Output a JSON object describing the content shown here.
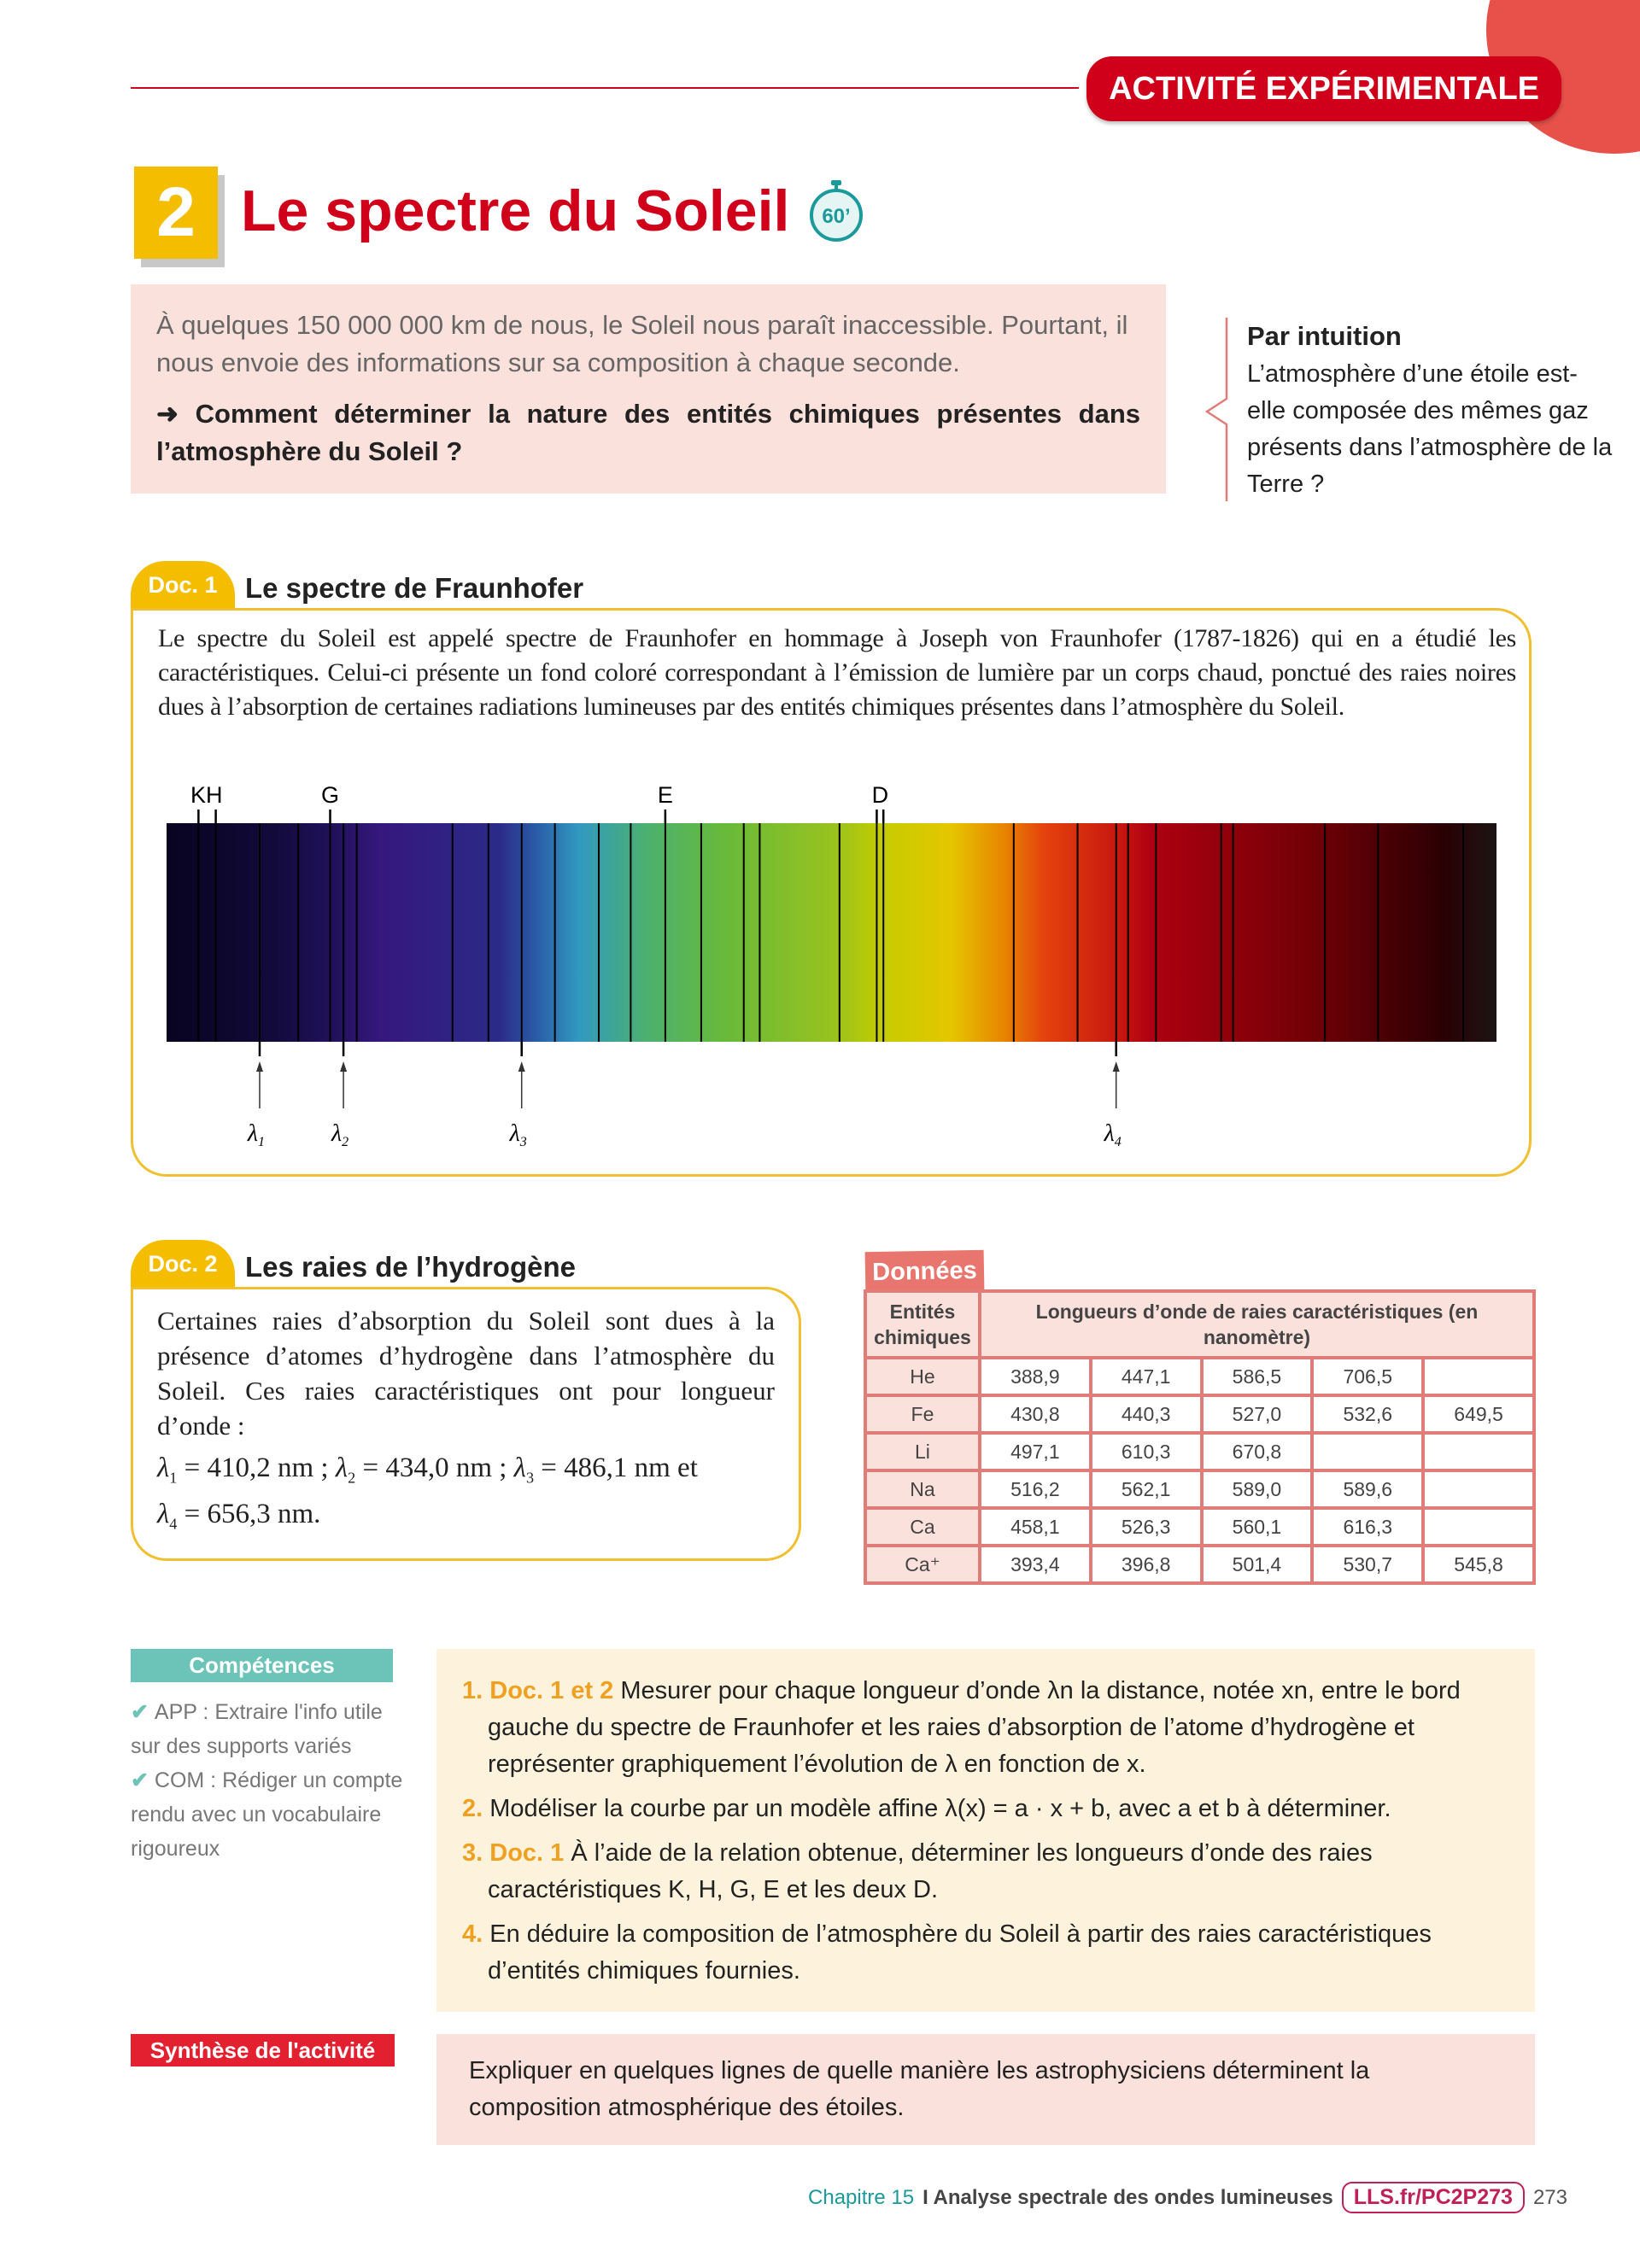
{
  "header": {
    "banner": "ACTIVITÉ EXPÉRIMENTALE",
    "number": "2",
    "title": "Le spectre du Soleil",
    "timer": "60’"
  },
  "intro": {
    "text": "À quelques 150 000 000 km de nous, le Soleil nous paraît inaccessible. Pourtant, il nous envoie des informations sur sa composition à chaque seconde.",
    "question": "➜ Comment déterminer la nature des entités chimiques présentes dans l’atmosphère du Soleil ?"
  },
  "intuition": {
    "title": "Par intuition",
    "text": "L’atmosphère d’une étoile est-elle composée des mêmes gaz présents dans l’atmosphère de la Terre ?"
  },
  "doc1": {
    "tab": "Doc. 1",
    "title": "Le spectre de Fraunhofer",
    "text": "Le spectre du Soleil est appelé spectre de Fraunhofer en hommage à Joseph von Fraunhofer (1787-1826) qui en a étudié les caractéristiques. Celui-ci présente un fond coloré correspondant à l’émission de lumière par un corps chaud, ponctué des raies noires dues à l’absorption de certaines radiations lumineuses par des entités chimiques présentes dans l’atmosphère du Soleil.",
    "top_labels": [
      "KH",
      "G",
      "E",
      "D"
    ],
    "lambda_labels": [
      "1",
      "2",
      "3",
      "4"
    ]
  },
  "doc2": {
    "tab": "Doc. 2",
    "title": "Les raies de l’hydrogène",
    "text": "Certaines raies d’absorption du Soleil sont dues à la présence d’atomes d’hydrogène dans l’atmosphère du Soleil. Ces raies caractéristiques ont pour longueur d’onde :",
    "eq": [
      {
        "sub": "1",
        "val": " = 410,2 nm ; "
      },
      {
        "sub": "2",
        "val": " = 434,0 nm ; "
      },
      {
        "sub": "3",
        "val": " = 486,1 nm et "
      },
      {
        "sub": "4",
        "val": " = 656,3 nm."
      }
    ]
  },
  "donnees": {
    "tab": "Données",
    "col1": "Entités chimiques",
    "col2": "Longueurs d’onde de raies caractéristiques (en nanomètre)",
    "rows": [
      {
        "entity": "He",
        "values": [
          "388,9",
          "447,1",
          "586,5",
          "706,5",
          ""
        ]
      },
      {
        "entity": "Fe",
        "values": [
          "430,8",
          "440,3",
          "527,0",
          "532,6",
          "649,5"
        ]
      },
      {
        "entity": "Li",
        "values": [
          "497,1",
          "610,3",
          "670,8",
          "",
          ""
        ]
      },
      {
        "entity": "Na",
        "values": [
          "516,2",
          "562,1",
          "589,0",
          "589,6",
          ""
        ]
      },
      {
        "entity": "Ca",
        "values": [
          "458,1",
          "526,3",
          "560,1",
          "616,3",
          ""
        ]
      },
      {
        "entity": "Ca⁺",
        "values": [
          "393,4",
          "396,8",
          "501,4",
          "530,7",
          "545,8"
        ]
      }
    ]
  },
  "competences": {
    "tag": "Compétences",
    "items": [
      "APP : Extraire l'info utile sur des supports variés",
      "COM : Rédiger un compte rendu avec un vocabulaire rigoureux"
    ]
  },
  "questions": [
    {
      "num": "1.",
      "ref": "Doc. 1 et 2",
      "text": " Mesurer pour chaque longueur d’onde λn la distance, notée xn, entre le bord gauche du spectre de Fraunhofer et les raies d’absorption de l’atome d’hydrogène et représenter graphiquement l’évolution de λ en fonction de x."
    },
    {
      "num": "2.",
      "ref": "",
      "text": " Modéliser la courbe par un modèle affine λ(x) = a · x + b, avec a et b à déterminer."
    },
    {
      "num": "3.",
      "ref": "Doc. 1",
      "text": " À l’aide de la relation obtenue, déterminer les longueurs d’onde des raies caractéristiques K, H, G, E et les deux D."
    },
    {
      "num": "4.",
      "ref": "",
      "text": " En déduire la composition de l’atmosphère du Soleil à partir des raies caractéristiques d’entités chimiques fournies."
    }
  ],
  "synthese": {
    "tag": "Synthèse de l'activité",
    "text": "Expliquer en quelques lignes de quelle manière les astrophysiciens déterminent la composition atmosphérique des étoiles."
  },
  "footer": {
    "chapter": "Chapitre 15",
    "section": "I Analyse spectrale des ondes lumineuses",
    "link": "LLS.fr/PC2P273",
    "page": "273"
  },
  "colors": {
    "red": "#d0001a",
    "yellow": "#f5bd00",
    "teal": "#6cc3b7",
    "pink": "#fbe1dc",
    "cream": "#fdf3dc",
    "table": "#e07d78"
  }
}
